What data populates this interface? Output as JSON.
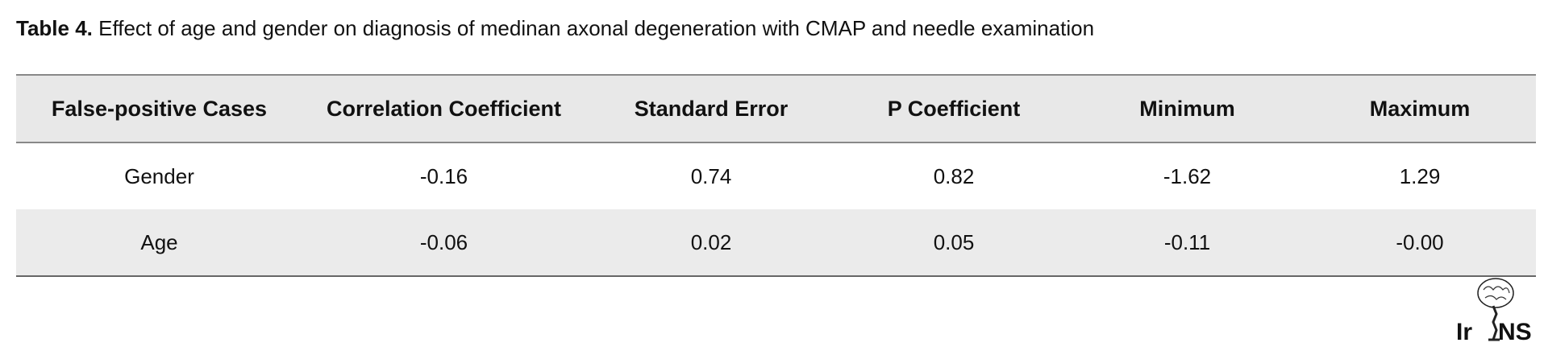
{
  "title": {
    "label": "Table 4.",
    "text": "Effect of age and gender on diagnosis of medinan axonal degeneration with CMAP and needle examination"
  },
  "table": {
    "header": [
      "False-positive Cases",
      "Correlation Coefficient",
      "Standard Error",
      "P Coefficient",
      "Minimum",
      "Maximum"
    ],
    "rows": [
      [
        "Gender",
        "-0.16",
        "0.74",
        "0.82",
        "-1.62",
        "1.29"
      ],
      [
        "Age",
        "-0.06",
        "0.02",
        "0.05",
        "-0.11",
        "-0.00"
      ]
    ]
  },
  "logo": {
    "left": "Ir",
    "right": "NS"
  }
}
